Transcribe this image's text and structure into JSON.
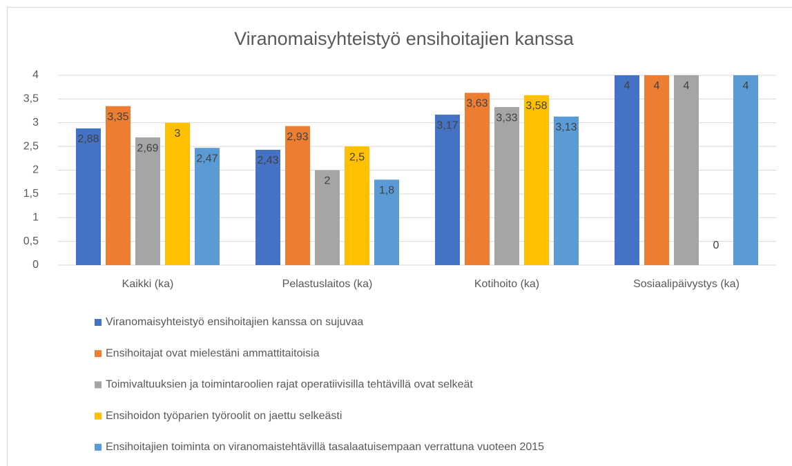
{
  "chart_data": {
    "type": "bar",
    "title": "Viranomaisyhteistyö ensihoitajien kanssa",
    "categories": [
      "Kaikki (ka)",
      "Pelastuslaitos (ka)",
      "Kotihoito (ka)",
      "Sosiaalipäivystys (ka)"
    ],
    "series": [
      {
        "name": "Viranomaisyhteistyö ensihoitajien kanssa on sujuvaa",
        "color": "#4472c4",
        "values": [
          2.88,
          2.43,
          3.17,
          4
        ],
        "value_labels": [
          "2,88",
          "2,43",
          "3,17",
          "4"
        ]
      },
      {
        "name": "Ensihoitajat ovat mielestäni ammattitaitoisia",
        "color": "#ed7d31",
        "values": [
          3.35,
          2.93,
          3.63,
          4
        ],
        "value_labels": [
          "3,35",
          "2,93",
          "3,63",
          "4"
        ]
      },
      {
        "name": "Toimivaltuuksien ja toimintaroolien rajat operatiivisilla tehtävillä ovat selkeät",
        "color": "#a5a5a5",
        "values": [
          2.69,
          2,
          3.33,
          4
        ],
        "value_labels": [
          "2,69",
          "2",
          "3,33",
          "4"
        ]
      },
      {
        "name": "Ensihoidon työparien työroolit on jaettu selkeästi",
        "color": "#ffc000",
        "values": [
          3,
          2.5,
          3.58,
          0
        ],
        "value_labels": [
          "3",
          "2,5",
          "3,58",
          "0"
        ]
      },
      {
        "name": "Ensihoitajien toiminta on viranomaistehtävillä tasalaatuisempaan verrattuna vuoteen 2015",
        "color": "#5b9bd5",
        "values": [
          2.47,
          1.8,
          3.13,
          4
        ],
        "value_labels": [
          "2,47",
          "1,8",
          "3,13",
          "4"
        ]
      }
    ],
    "ylim": [
      0,
      4
    ],
    "yticks": [
      0,
      {
        "value": 0.5,
        "label": "0,5"
      },
      1,
      {
        "value": 1.5,
        "label": "1,5"
      },
      2,
      {
        "value": 2.5,
        "label": "2,5"
      },
      3,
      {
        "value": 3.5,
        "label": "3,5"
      },
      4
    ],
    "grid": true,
    "legend": "bottom"
  }
}
